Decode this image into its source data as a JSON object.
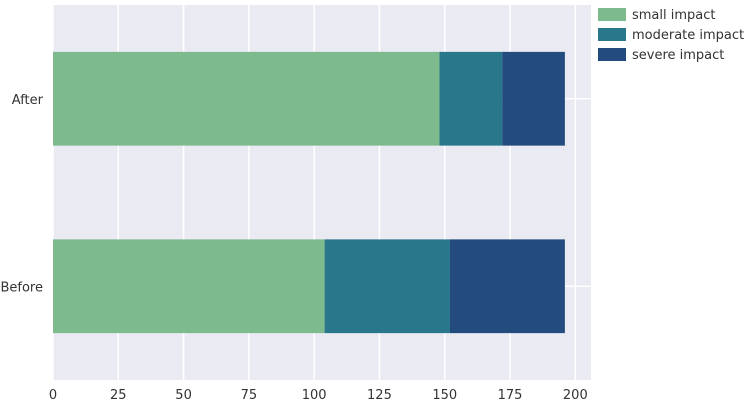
{
  "chart_data": {
    "type": "bar",
    "orientation": "horizontal",
    "stacked": true,
    "categories": [
      "After",
      "Before"
    ],
    "series": [
      {
        "name": "small impact",
        "values": [
          148,
          104
        ],
        "color": "#7dbb8f"
      },
      {
        "name": "moderate impact",
        "values": [
          24,
          48
        ],
        "color": "#29778b"
      },
      {
        "name": "severe impact",
        "values": [
          24,
          44
        ],
        "color": "#234b7d"
      }
    ],
    "xlim": [
      0,
      206
    ],
    "xticks": [
      0,
      25,
      50,
      75,
      100,
      125,
      150,
      175,
      200
    ],
    "title": "",
    "xlabel": "",
    "ylabel": "",
    "grid": true,
    "background": "#eaeaf2",
    "legend_position": "top-right"
  }
}
